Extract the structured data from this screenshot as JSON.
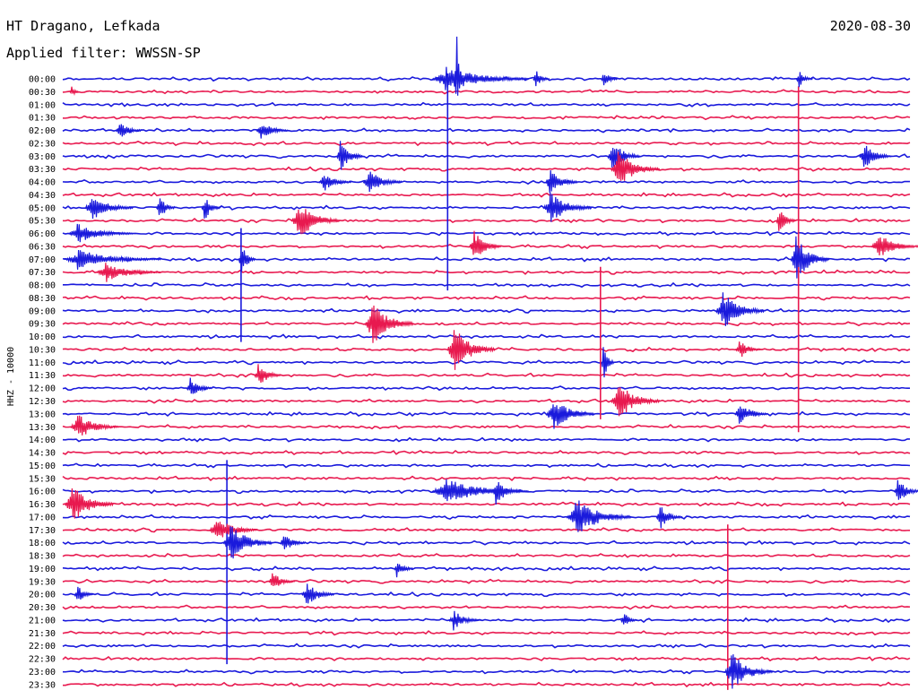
{
  "header": {
    "station": "HT Dragano, Lefkada",
    "filter_label": "Applied filter: WWSSN-SP",
    "date": "2020-08-30"
  },
  "chart_data": {
    "type": "line",
    "title": "HT Dragano, Lefkada",
    "subtitle": "Applied filter: WWSSN-SP",
    "date": "2020-08-30",
    "ylabel": "HHZ - 10000",
    "row_labels": [
      "00:00",
      "00:30",
      "01:00",
      "01:30",
      "02:00",
      "02:30",
      "03:00",
      "03:30",
      "04:00",
      "04:30",
      "05:00",
      "05:30",
      "06:00",
      "06:30",
      "07:00",
      "07:30",
      "08:00",
      "08:30",
      "09:00",
      "09:30",
      "10:00",
      "10:30",
      "11:00",
      "11:30",
      "12:00",
      "12:30",
      "13:00",
      "13:30",
      "14:00",
      "14:30",
      "15:00",
      "15:30",
      "16:00",
      "16:30",
      "17:00",
      "17:30",
      "18:00",
      "18:30",
      "19:00",
      "19:30",
      "20:00",
      "20:30",
      "21:00",
      "21:30",
      "22:00",
      "22:30",
      "23:00",
      "23:30"
    ],
    "minutes_per_row": 30,
    "trace_colors": [
      "#1a1adc",
      "#e8194f"
    ],
    "events": [
      {
        "row": 1,
        "minute": 0.3,
        "amp": 1,
        "dur": 0.3
      },
      {
        "row": 0,
        "minute": 13.9,
        "amp": 10,
        "dur": 0.25
      },
      {
        "row": 0,
        "minute": 13.5,
        "amp": 2,
        "dur": 3
      },
      {
        "row": 0,
        "minute": 16.7,
        "amp": 1.5,
        "dur": 0.5
      },
      {
        "row": 0,
        "minute": 19.1,
        "amp": 1.5,
        "dur": 0.5
      },
      {
        "row": 0,
        "minute": 26.0,
        "amp": 1.5,
        "dur": 0.5
      },
      {
        "row": 4,
        "minute": 2.0,
        "amp": 1.5,
        "dur": 0.8
      },
      {
        "row": 4,
        "minute": 7.0,
        "amp": 1.5,
        "dur": 1.0
      },
      {
        "row": 6,
        "minute": 9.8,
        "amp": 2.5,
        "dur": 0.8
      },
      {
        "row": 6,
        "minute": 19.4,
        "amp": 2.5,
        "dur": 1.0
      },
      {
        "row": 6,
        "minute": 28.3,
        "amp": 2,
        "dur": 1.0
      },
      {
        "row": 7,
        "minute": 19.6,
        "amp": 3,
        "dur": 1.5
      },
      {
        "row": 8,
        "minute": 9.2,
        "amp": 1.5,
        "dur": 1.0
      },
      {
        "row": 8,
        "minute": 10.8,
        "amp": 2,
        "dur": 1.2
      },
      {
        "row": 8,
        "minute": 17.2,
        "amp": 2,
        "dur": 1.0
      },
      {
        "row": 10,
        "minute": 1.0,
        "amp": 2,
        "dur": 1.5
      },
      {
        "row": 10,
        "minute": 3.4,
        "amp": 2,
        "dur": 0.6
      },
      {
        "row": 10,
        "minute": 5.0,
        "amp": 2,
        "dur": 0.6
      },
      {
        "row": 10,
        "minute": 17.2,
        "amp": 2.5,
        "dur": 1.5
      },
      {
        "row": 11,
        "minute": 8.3,
        "amp": 3,
        "dur": 1.5
      },
      {
        "row": 11,
        "minute": 25.3,
        "amp": 2,
        "dur": 0.6
      },
      {
        "row": 12,
        "minute": 0.5,
        "amp": 1.5,
        "dur": 2.0
      },
      {
        "row": 13,
        "minute": 14.5,
        "amp": 2.5,
        "dur": 1.0
      },
      {
        "row": 13,
        "minute": 28.8,
        "amp": 2,
        "dur": 1.5
      },
      {
        "row": 14,
        "minute": 0.5,
        "amp": 1.5,
        "dur": 3.0
      },
      {
        "row": 14,
        "minute": 6.3,
        "amp": 3,
        "dur": 0.5
      },
      {
        "row": 14,
        "minute": 25.9,
        "amp": 3.5,
        "dur": 1.2
      },
      {
        "row": 15,
        "minute": 1.5,
        "amp": 1.5,
        "dur": 2.0
      },
      {
        "row": 18,
        "minute": 23.3,
        "amp": 3,
        "dur": 1.5
      },
      {
        "row": 19,
        "minute": 10.9,
        "amp": 3.5,
        "dur": 1.5
      },
      {
        "row": 21,
        "minute": 13.8,
        "amp": 3.5,
        "dur": 1.5
      },
      {
        "row": 21,
        "minute": 23.9,
        "amp": 1.5,
        "dur": 0.8
      },
      {
        "row": 22,
        "minute": 19.1,
        "amp": 3,
        "dur": 0.4
      },
      {
        "row": 23,
        "minute": 6.9,
        "amp": 2,
        "dur": 0.8
      },
      {
        "row": 24,
        "minute": 4.5,
        "amp": 1.5,
        "dur": 0.8
      },
      {
        "row": 25,
        "minute": 19.6,
        "amp": 3,
        "dur": 1.5
      },
      {
        "row": 26,
        "minute": 17.3,
        "amp": 2.5,
        "dur": 1.5
      },
      {
        "row": 26,
        "minute": 23.9,
        "amp": 2,
        "dur": 1.0
      },
      {
        "row": 27,
        "minute": 0.5,
        "amp": 2,
        "dur": 1.5
      },
      {
        "row": 32,
        "minute": 13.5,
        "amp": 2,
        "dur": 3.0
      },
      {
        "row": 32,
        "minute": 15.3,
        "amp": 2,
        "dur": 1.0
      },
      {
        "row": 32,
        "minute": 29.5,
        "amp": 2,
        "dur": 0.8
      },
      {
        "row": 33,
        "minute": 0.3,
        "amp": 3,
        "dur": 1.5
      },
      {
        "row": 34,
        "minute": 18.1,
        "amp": 3,
        "dur": 2.0
      },
      {
        "row": 34,
        "minute": 21.1,
        "amp": 2,
        "dur": 0.8
      },
      {
        "row": 35,
        "minute": 5.4,
        "amp": 2,
        "dur": 1.5
      },
      {
        "row": 36,
        "minute": 5.9,
        "amp": 3,
        "dur": 1.5
      },
      {
        "row": 36,
        "minute": 7.8,
        "amp": 1.5,
        "dur": 0.8
      },
      {
        "row": 38,
        "minute": 11.8,
        "amp": 1.5,
        "dur": 0.6
      },
      {
        "row": 39,
        "minute": 7.4,
        "amp": 1.5,
        "dur": 0.8
      },
      {
        "row": 40,
        "minute": 0.5,
        "amp": 1.5,
        "dur": 0.6
      },
      {
        "row": 40,
        "minute": 8.6,
        "amp": 2,
        "dur": 1.0
      },
      {
        "row": 42,
        "minute": 13.8,
        "amp": 1.5,
        "dur": 1.0
      },
      {
        "row": 42,
        "minute": 19.8,
        "amp": 1.5,
        "dur": 0.5
      },
      {
        "row": 46,
        "minute": 23.6,
        "amp": 3,
        "dur": 1.5
      }
    ],
    "spikes": [
      {
        "minute": 13.6,
        "from_row": 0,
        "to_row": 16
      },
      {
        "minute": 26.0,
        "from_row": 1,
        "to_row": 27
      },
      {
        "minute": 6.3,
        "from_row": 12,
        "to_row": 20
      },
      {
        "minute": 19.0,
        "from_row": 15,
        "to_row": 26
      },
      {
        "minute": 5.8,
        "from_row": 30,
        "to_row": 45
      },
      {
        "minute": 23.5,
        "from_row": 35,
        "to_row": 47
      }
    ]
  }
}
